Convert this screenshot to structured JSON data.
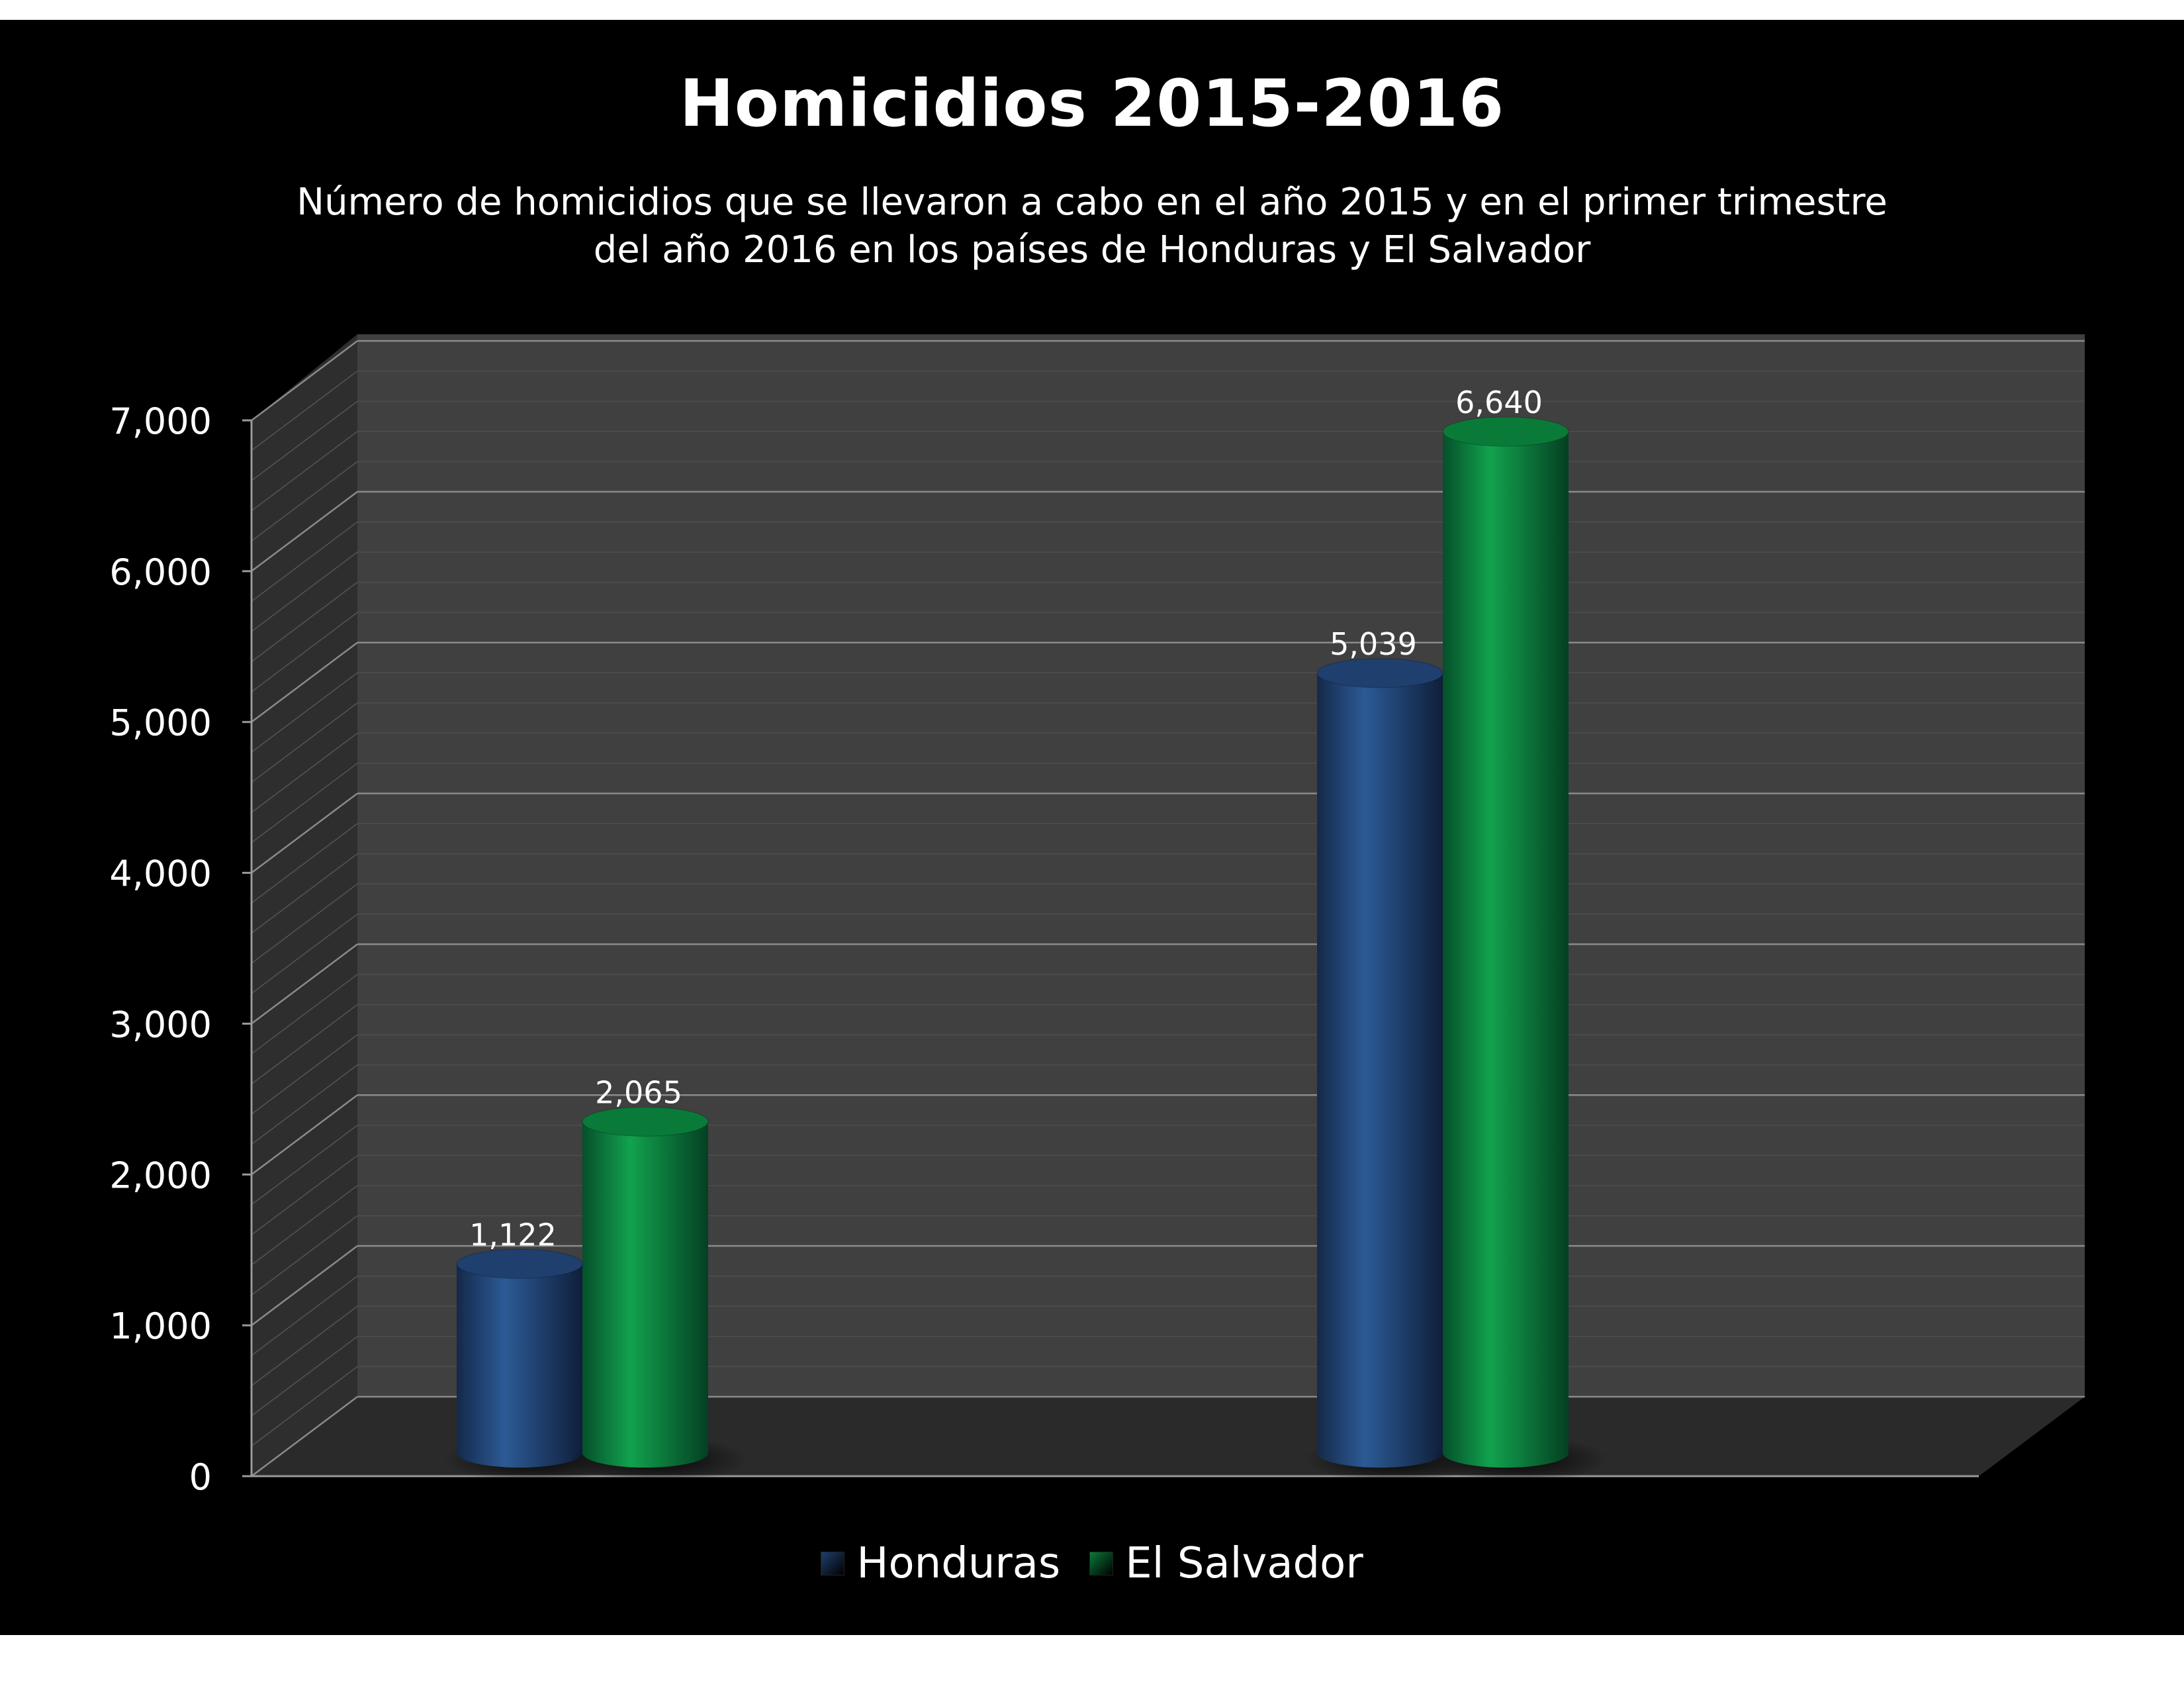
{
  "colors": {
    "background": "#000000",
    "wall": "#404040",
    "floor": "#2a2a2a",
    "grid": "#8a8a8a",
    "text": "#ffffff"
  },
  "chart_data": {
    "type": "bar",
    "title": "Homicidios 2015-2016",
    "subtitle": "Número de homicidios que se llevaron a cabo en el año 2015 y en el primer trimestre del año 2016 en los países de Honduras y El Salvador",
    "xlabel": "",
    "ylabel": "",
    "categories": [
      "",
      ""
    ],
    "ylim": [
      0,
      7000
    ],
    "yticks": [
      0,
      1000,
      2000,
      3000,
      4000,
      5000,
      6000,
      7000
    ],
    "ytick_labels": [
      "0",
      "1,000",
      "2,000",
      "3,000",
      "4,000",
      "5,000",
      "6,000",
      "7,000"
    ],
    "grid": true,
    "bar_shape": "cylinder-3d",
    "legend_position": "bottom",
    "series": [
      {
        "name": "Honduras",
        "color": "#1f3f6e",
        "values": [
          1122,
          5039
        ],
        "labels": [
          "1,122",
          "5,039"
        ]
      },
      {
        "name": "El Salvador",
        "color": "#0a7a38",
        "values": [
          2065,
          6640
        ],
        "labels": [
          "2,065",
          "6,640"
        ]
      }
    ]
  }
}
